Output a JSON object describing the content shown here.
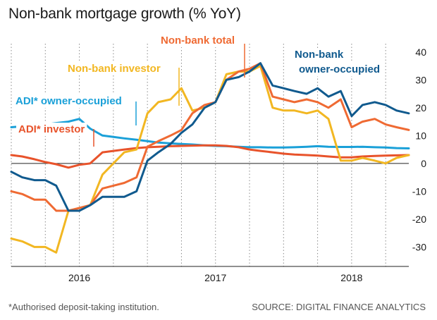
{
  "title": "Non-bank mortgage growth (% YoY)",
  "footnote": "*Authorised deposit-taking institution.",
  "source": "SOURCE: DIGITAL FINANCE ANALYTICS",
  "chart_data": {
    "type": "line",
    "title": "Non-bank mortgage growth (% YoY)",
    "xlabel": "",
    "ylabel": "",
    "x_ticks": [
      "2016",
      "2017",
      "2018"
    ],
    "y_ticks": [
      40,
      30,
      20,
      10,
      0,
      -10,
      -20,
      -30
    ],
    "ylim": [
      -37,
      43
    ],
    "xlim": [
      2015.5,
      2018.42
    ],
    "grid": "vertical dotted",
    "series": [
      {
        "name": "ADI* owner-occupied",
        "color": "#1aa0d8",
        "x": [
          2015.5,
          2015.58,
          2015.67,
          2015.75,
          2015.83,
          2015.92,
          2016.0,
          2016.08,
          2016.17,
          2016.25,
          2016.33,
          2016.42,
          2016.5,
          2016.58,
          2016.67,
          2016.75,
          2016.83,
          2016.92,
          2017.0,
          2017.08,
          2017.17,
          2017.25,
          2017.33,
          2017.42,
          2017.5,
          2017.58,
          2017.67,
          2017.75,
          2017.83,
          2017.92,
          2018.0,
          2018.08,
          2018.17,
          2018.25,
          2018.33,
          2018.42
        ],
        "values": [
          13,
          13.3,
          13.6,
          14,
          14.5,
          15,
          16,
          12.5,
          10,
          9.5,
          9,
          8.5,
          8,
          7.5,
          7.2,
          7,
          6.8,
          6.5,
          6.3,
          6.2,
          6,
          5.8,
          5.8,
          5.7,
          5.7,
          5.8,
          6,
          6.2,
          6,
          5.9,
          5.9,
          6,
          5.8,
          5.7,
          5.5,
          5.4
        ]
      },
      {
        "name": "ADI* investor",
        "color": "#e8532b",
        "x": [
          2015.5,
          2015.58,
          2015.67,
          2015.75,
          2015.83,
          2015.92,
          2016.0,
          2016.08,
          2016.17,
          2016.25,
          2016.33,
          2016.42,
          2016.5,
          2016.58,
          2016.67,
          2016.75,
          2016.83,
          2016.92,
          2017.0,
          2017.08,
          2017.17,
          2017.25,
          2017.33,
          2017.42,
          2017.5,
          2017.58,
          2017.67,
          2017.75,
          2017.83,
          2017.92,
          2018.0,
          2018.08,
          2018.17,
          2018.25,
          2018.33,
          2018.42
        ],
        "values": [
          3,
          2.5,
          1.5,
          0.5,
          -0.3,
          -1.5,
          -0.5,
          0,
          4,
          4.5,
          5,
          5.5,
          5.8,
          6,
          6.2,
          6.3,
          6.4,
          6.5,
          6.5,
          6.3,
          5.8,
          5,
          4.5,
          4,
          3.5,
          3.2,
          3,
          2.8,
          2.5,
          2.2,
          2.2,
          2.5,
          2.7,
          2.8,
          2.9,
          3
        ]
      },
      {
        "name": "Non-bank investor",
        "color": "#f2b722",
        "x": [
          2015.5,
          2015.58,
          2015.67,
          2015.75,
          2015.83,
          2015.92,
          2016.0,
          2016.08,
          2016.17,
          2016.25,
          2016.33,
          2016.42,
          2016.5,
          2016.58,
          2016.67,
          2016.75,
          2016.83,
          2016.92,
          2017.0,
          2017.08,
          2017.17,
          2017.25,
          2017.33,
          2017.42,
          2017.5,
          2017.58,
          2017.67,
          2017.75,
          2017.83,
          2017.92,
          2018.0,
          2018.08,
          2018.17,
          2018.25,
          2018.33,
          2018.42
        ],
        "values": [
          -27,
          -28,
          -30,
          -30,
          -32,
          -17,
          -16,
          -15,
          -4,
          0,
          4,
          5,
          18,
          22,
          23,
          27,
          19,
          20,
          22,
          32,
          33,
          33,
          35,
          20,
          19,
          19,
          18,
          19,
          16,
          1,
          1,
          2,
          1,
          0,
          2,
          3
        ]
      },
      {
        "name": "Non-bank total",
        "color": "#ef6a33",
        "x": [
          2015.5,
          2015.58,
          2015.67,
          2015.75,
          2015.83,
          2015.92,
          2016.0,
          2016.08,
          2016.17,
          2016.25,
          2016.33,
          2016.42,
          2016.5,
          2016.58,
          2016.67,
          2016.75,
          2016.83,
          2016.92,
          2017.0,
          2017.08,
          2017.17,
          2017.25,
          2017.33,
          2017.42,
          2017.5,
          2017.58,
          2017.67,
          2017.75,
          2017.83,
          2017.92,
          2018.0,
          2018.08,
          2018.17,
          2018.25,
          2018.33,
          2018.42
        ],
        "values": [
          -10,
          -11,
          -13,
          -13,
          -17,
          -17,
          -16,
          -15,
          -9,
          -8,
          -7,
          -5,
          6,
          8,
          10,
          12,
          18,
          21,
          22,
          30,
          33,
          34,
          36,
          24,
          23,
          22,
          23,
          22,
          20,
          23,
          13,
          15,
          16,
          14,
          13,
          12
        ]
      },
      {
        "name": "Non-bank owner-occupied",
        "color": "#105a8e",
        "x": [
          2015.5,
          2015.58,
          2015.67,
          2015.75,
          2015.83,
          2015.92,
          2016.0,
          2016.08,
          2016.17,
          2016.25,
          2016.33,
          2016.42,
          2016.5,
          2016.58,
          2016.67,
          2016.75,
          2016.83,
          2016.92,
          2017.0,
          2017.08,
          2017.17,
          2017.25,
          2017.33,
          2017.42,
          2017.5,
          2017.58,
          2017.67,
          2017.75,
          2017.83,
          2017.92,
          2018.0,
          2018.08,
          2018.17,
          2018.25,
          2018.33,
          2018.42
        ],
        "values": [
          -3,
          -5,
          -6,
          -6,
          -8,
          -17,
          -17,
          -15,
          -12,
          -12,
          -12,
          -10,
          1,
          4,
          7,
          11,
          14,
          20,
          22,
          30,
          31,
          33,
          36,
          28,
          27,
          26,
          25,
          27,
          24,
          26,
          17,
          21,
          22,
          21,
          19,
          18
        ]
      }
    ],
    "labels": [
      {
        "text": "Non-bank total",
        "series": "Non-bank total"
      },
      {
        "text": "Non-bank investor",
        "series": "Non-bank investor"
      },
      {
        "text": "Non-bank",
        "series": "Non-bank owner-occupied"
      },
      {
        "text": "owner-occupied",
        "series": "Non-bank owner-occupied"
      },
      {
        "text": "ADI* owner-occupied",
        "series": "ADI* owner-occupied"
      },
      {
        "text": "ADI* investor",
        "series": "ADI* investor"
      }
    ]
  }
}
